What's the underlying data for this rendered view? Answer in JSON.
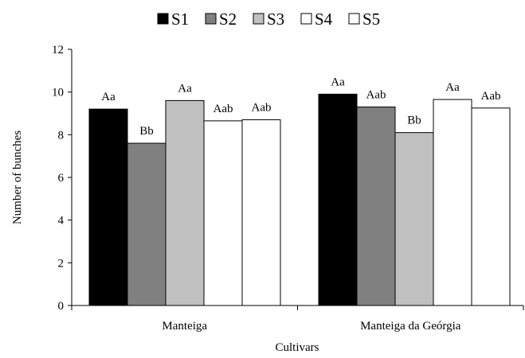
{
  "chart_data": {
    "type": "bar",
    "categories": [
      "Manteiga",
      "Manteiga da Geórgia"
    ],
    "series": [
      {
        "name": "S1",
        "color": "#000000",
        "values": [
          9.2,
          9.9
        ],
        "labels": [
          "Aa",
          "Aa"
        ]
      },
      {
        "name": "S2",
        "color": "#808080",
        "values": [
          7.6,
          9.3
        ],
        "labels": [
          "Bb",
          "Aab"
        ]
      },
      {
        "name": "S3",
        "color": "#c0c0c0",
        "values": [
          9.6,
          8.1
        ],
        "labels": [
          "Aa",
          "Bb"
        ]
      },
      {
        "name": "S4",
        "color": "#ffffff",
        "values": [
          8.65,
          9.65
        ],
        "labels": [
          "Aab",
          "Aa"
        ]
      },
      {
        "name": "S5",
        "color": "#ffffff",
        "values": [
          8.7,
          9.25
        ],
        "labels": [
          "Aab",
          "Aab"
        ]
      }
    ],
    "title": "",
    "xlabel": "Cultivars",
    "ylabel": "Number of bunches",
    "ylim": [
      0,
      12
    ],
    "yticks": [
      0,
      2,
      4,
      6,
      8,
      10,
      12
    ],
    "grid": false,
    "legend": "top-center"
  }
}
